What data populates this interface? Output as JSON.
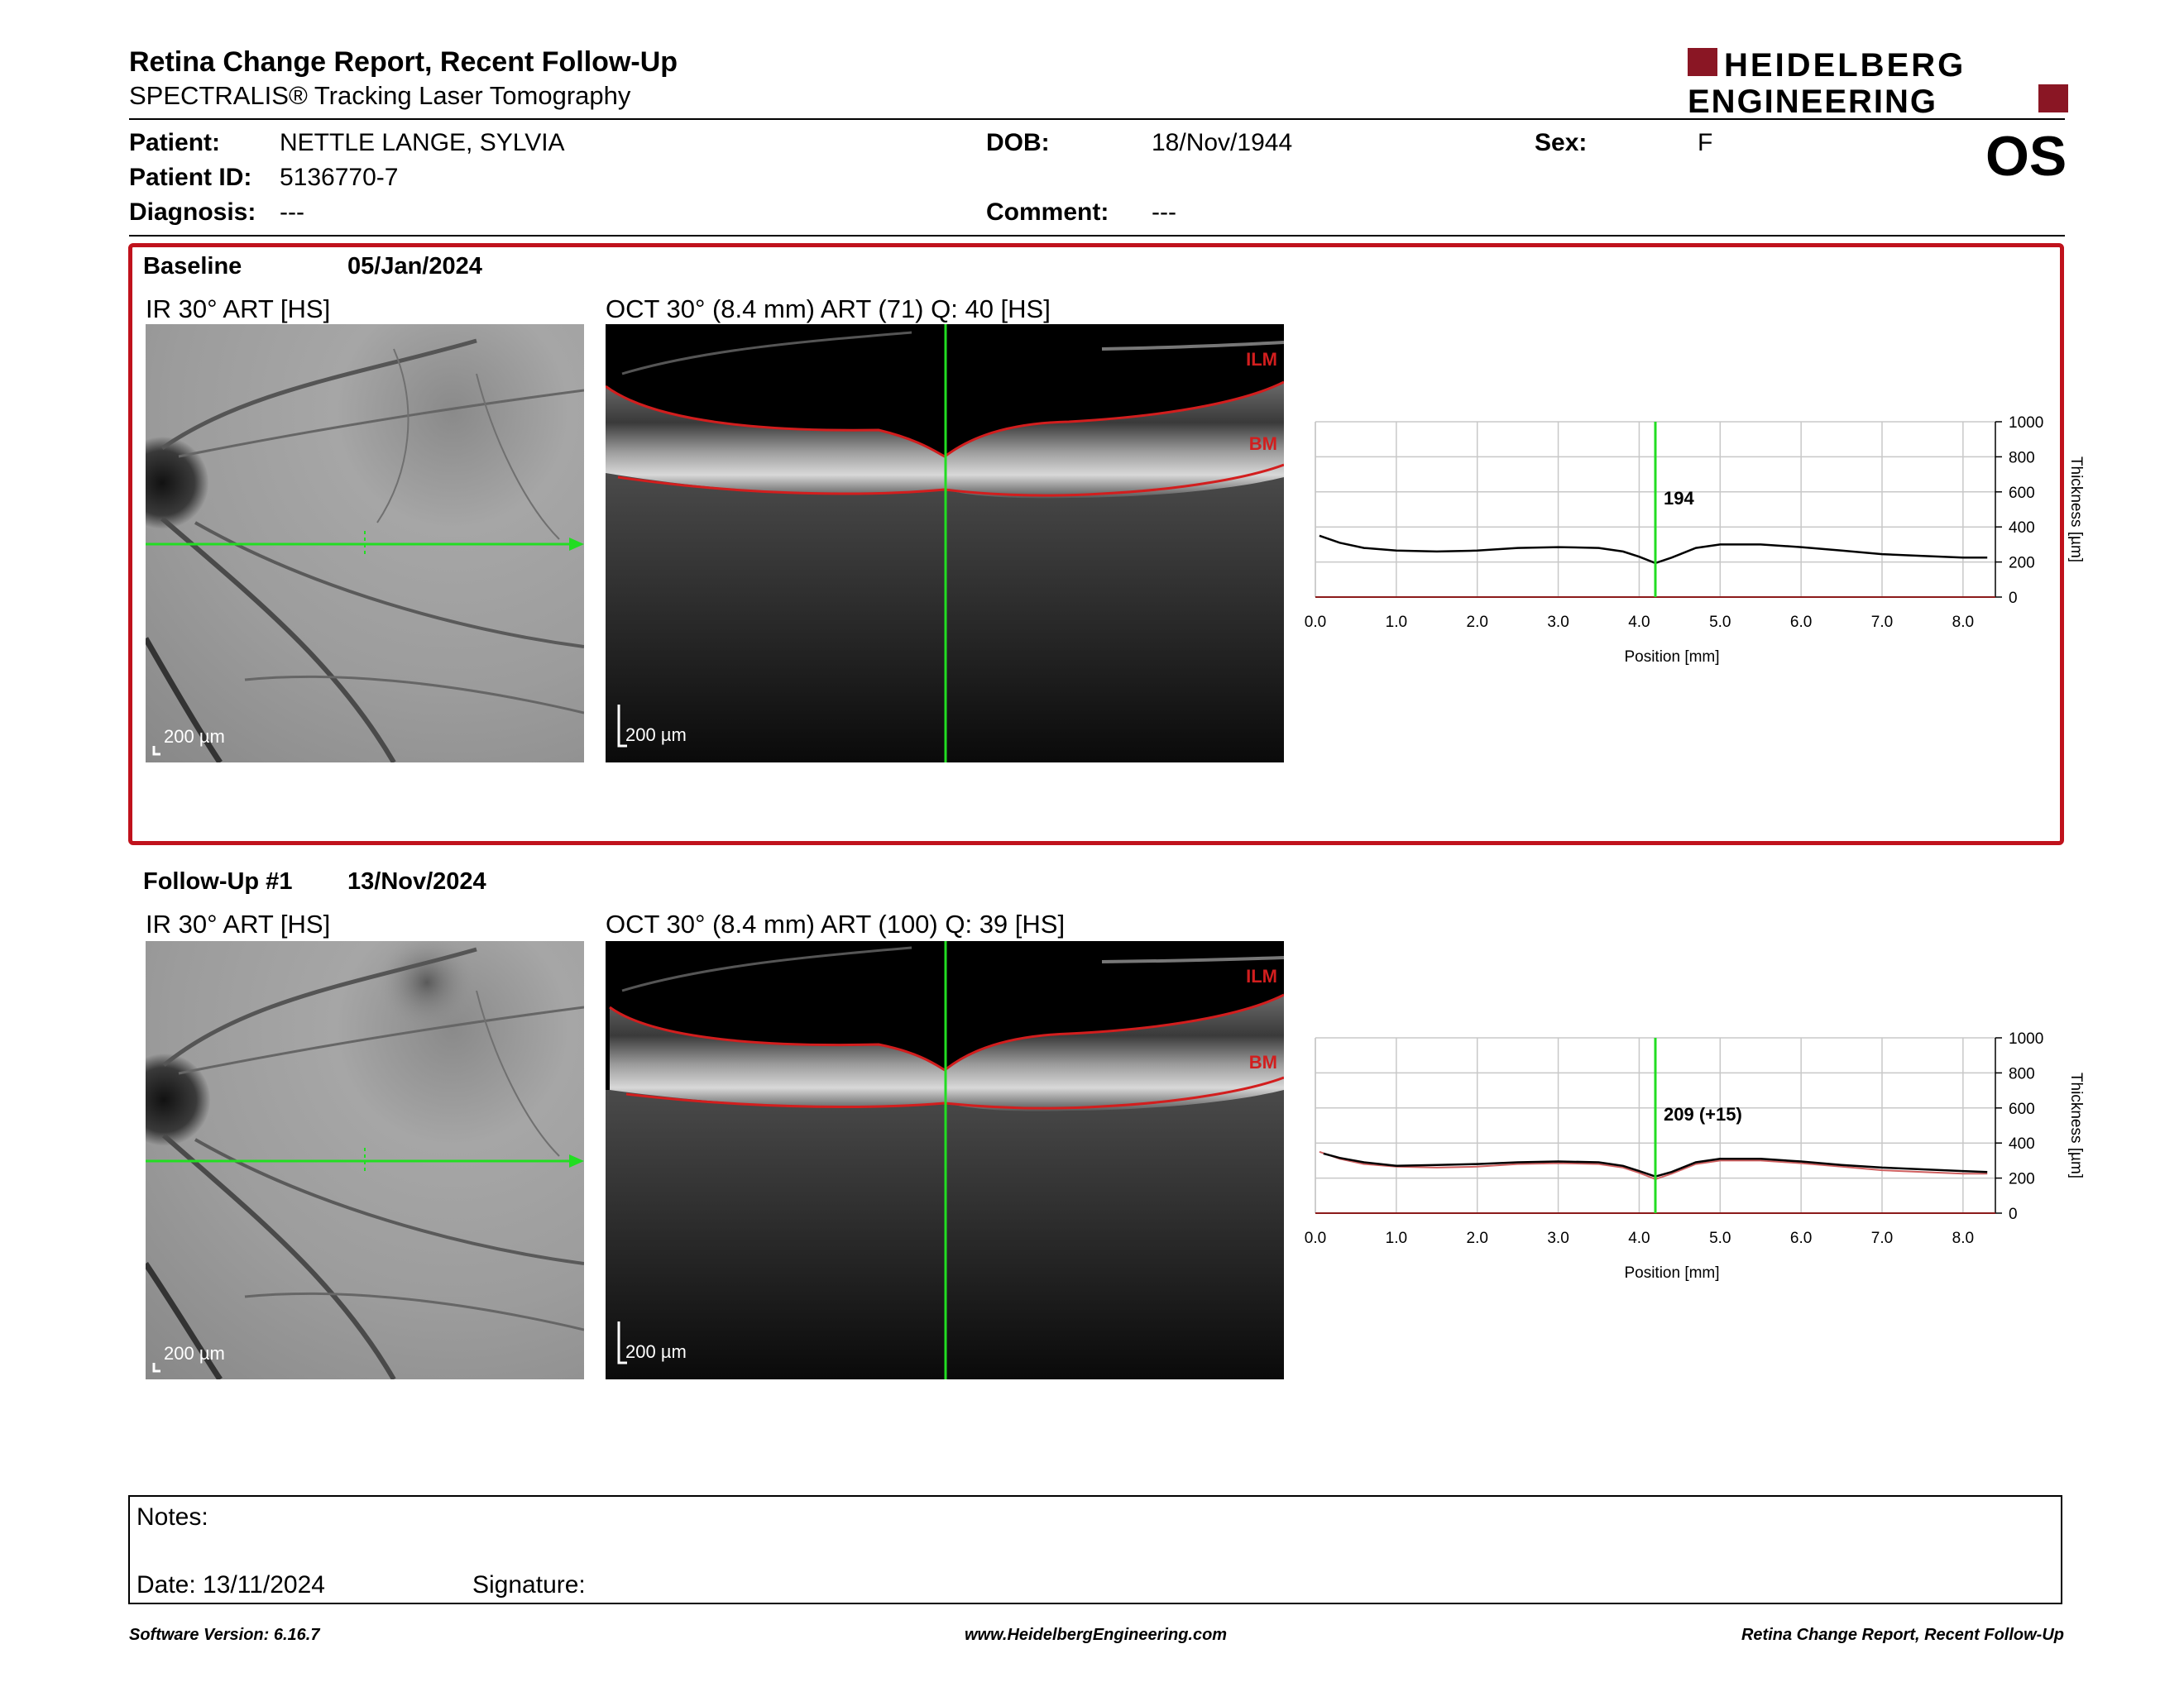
{
  "header": {
    "title": "Retina Change Report, Recent Follow-Up",
    "subtitle": "SPECTRALIS® Tracking Laser Tomography",
    "logo_line1": "HEIDELBERG",
    "logo_line2": "ENGINEERING",
    "logo_color": "#8a1624"
  },
  "patient": {
    "patient_label": "Patient:",
    "patient_value": "NETTLE LANGE, SYLVIA",
    "id_label": "Patient ID:",
    "id_value": "5136770-7",
    "diagnosis_label": "Diagnosis:",
    "diagnosis_value": "---",
    "dob_label": "DOB:",
    "dob_value": "18/Nov/1944",
    "comment_label": "Comment:",
    "comment_value": "---",
    "sex_label": "Sex:",
    "sex_value": "F",
    "eye": "OS"
  },
  "baseline": {
    "label": "Baseline",
    "date": "05/Jan/2024",
    "ir_title": "IR 30° ART [HS]",
    "oct_title": "OCT 30° (8.4 mm) ART (71) Q: 40 [HS]",
    "ir_scale": "200 µm",
    "oct_scale": "200 µm",
    "ilm_label": "ILM",
    "bm_label": "BM"
  },
  "followup": {
    "label": "Follow-Up #1",
    "date": "13/Nov/2024",
    "ir_title": "IR 30° ART [HS]",
    "oct_title": "OCT 30° (8.4 mm) ART (100) Q: 39 [HS]",
    "ir_scale": "200 µm",
    "oct_scale": "200 µm",
    "ilm_label": "ILM",
    "bm_label": "BM"
  },
  "chart_data": [
    {
      "type": "line",
      "xlabel": "Position [mm]",
      "ylabel": "Thickness [µm]",
      "xlim": [
        0,
        8.4
      ],
      "ylim": [
        0,
        1000
      ],
      "xticks": [
        "0.0",
        "1.0",
        "2.0",
        "3.0",
        "4.0",
        "5.0",
        "6.0",
        "7.0",
        "8.0"
      ],
      "yticks": [
        "0",
        "200",
        "400",
        "600",
        "800",
        "1000"
      ],
      "grid": true,
      "cursor_x": 4.2,
      "annotation": "194",
      "series": [
        {
          "x": [
            0.05,
            0.3,
            0.6,
            1.0,
            1.5,
            2.0,
            2.5,
            3.0,
            3.5,
            3.8,
            4.0,
            4.2,
            4.4,
            4.7,
            5.0,
            5.5,
            6.0,
            6.5,
            7.0,
            7.5,
            8.0,
            8.3
          ],
          "values": [
            350,
            310,
            280,
            265,
            260,
            265,
            280,
            285,
            280,
            260,
            230,
            194,
            225,
            280,
            300,
            300,
            285,
            265,
            245,
            235,
            225,
            225
          ]
        }
      ]
    },
    {
      "type": "line",
      "xlabel": "Position [mm]",
      "ylabel": "Thickness [µm]",
      "xlim": [
        0,
        8.4
      ],
      "ylim": [
        0,
        1000
      ],
      "xticks": [
        "0.0",
        "1.0",
        "2.0",
        "3.0",
        "4.0",
        "5.0",
        "6.0",
        "7.0",
        "8.0"
      ],
      "yticks": [
        "0",
        "200",
        "400",
        "600",
        "800",
        "1000"
      ],
      "grid": true,
      "cursor_x": 4.2,
      "annotation": "209 (+15)",
      "series": [
        {
          "x": [
            0.1,
            0.3,
            0.6,
            1.0,
            1.5,
            2.0,
            2.5,
            3.0,
            3.5,
            3.8,
            4.0,
            4.2,
            4.4,
            4.7,
            5.0,
            5.5,
            6.0,
            6.5,
            7.0,
            7.5,
            8.0,
            8.3
          ],
          "values": [
            340,
            315,
            290,
            270,
            275,
            280,
            290,
            295,
            290,
            270,
            240,
            209,
            235,
            290,
            310,
            310,
            295,
            275,
            260,
            250,
            240,
            235
          ]
        },
        {
          "x": [
            0.05,
            0.3,
            0.6,
            1.0,
            1.5,
            2.0,
            2.5,
            3.0,
            3.5,
            3.8,
            4.0,
            4.2,
            4.4,
            4.7,
            5.0,
            5.5,
            6.0,
            6.5,
            7.0,
            7.5,
            8.0,
            8.3
          ],
          "values": [
            350,
            310,
            280,
            265,
            260,
            265,
            280,
            285,
            280,
            260,
            230,
            194,
            225,
            280,
            300,
            300,
            285,
            265,
            245,
            235,
            225,
            225
          ]
        }
      ]
    }
  ],
  "notes": {
    "notes_label": "Notes:",
    "date_label": "Date: 13/11/2024",
    "signature_label": "Signature:"
  },
  "footer": {
    "software": "Software Version: 6.16.7",
    "website": "www.HeidelbergEngineering.com",
    "report": "Retina Change Report, Recent Follow-Up"
  }
}
